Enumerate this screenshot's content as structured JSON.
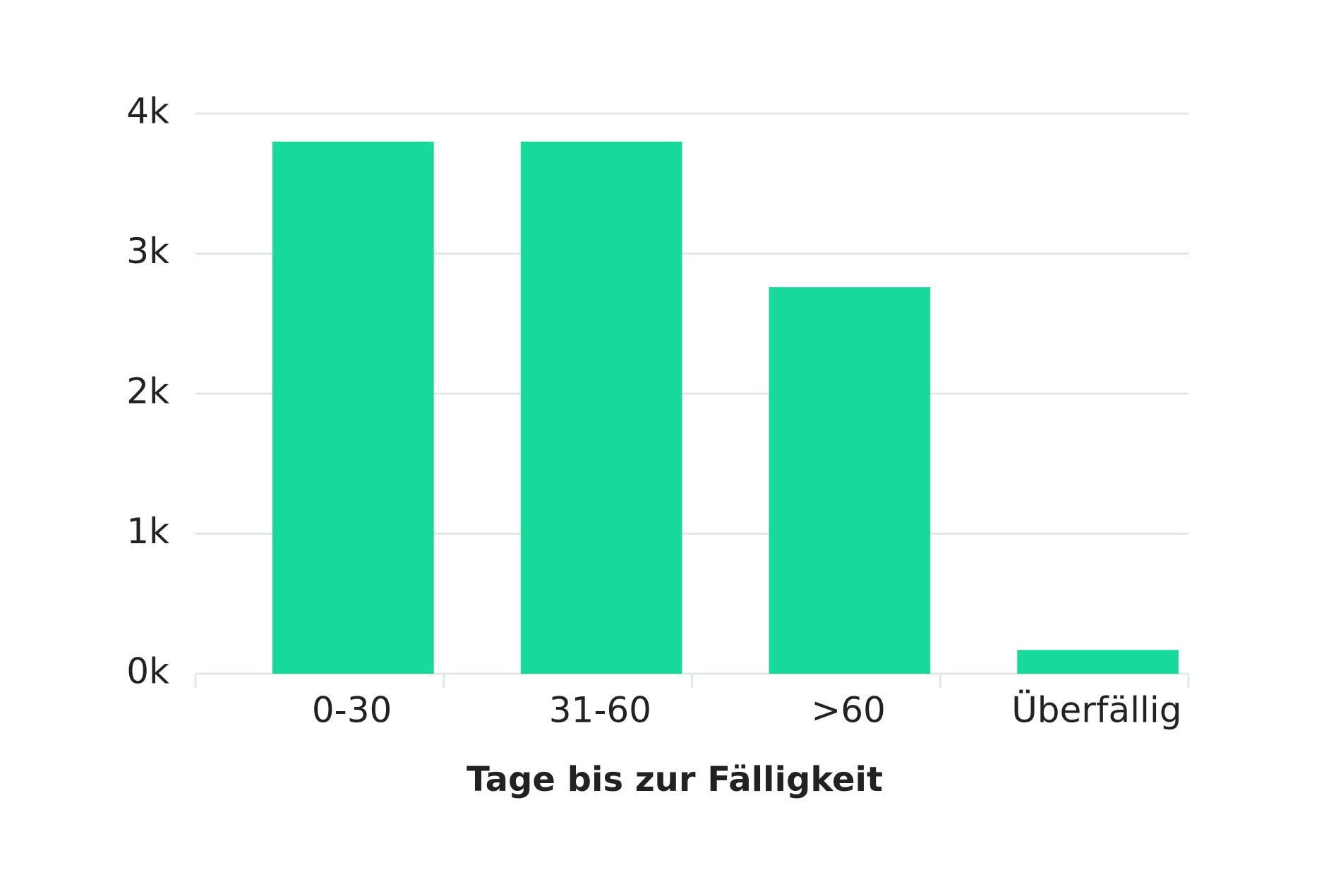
{
  "chart_data": {
    "type": "bar",
    "x_label": "Tage bis zur Fälligkeit",
    "categories": [
      "0-30",
      "31-60",
      ">60",
      "Überfällig"
    ],
    "values": [
      3800,
      3800,
      2760,
      170
    ],
    "color": "#17d99c",
    "ylim": [
      0,
      4000
    ],
    "yticks": [
      {
        "value": 0,
        "label": "0k"
      },
      {
        "value": 1000,
        "label": "1k"
      },
      {
        "value": 2000,
        "label": "2k"
      },
      {
        "value": 3000,
        "label": "3k"
      },
      {
        "value": 4000,
        "label": "4k"
      }
    ],
    "grid": true
  }
}
